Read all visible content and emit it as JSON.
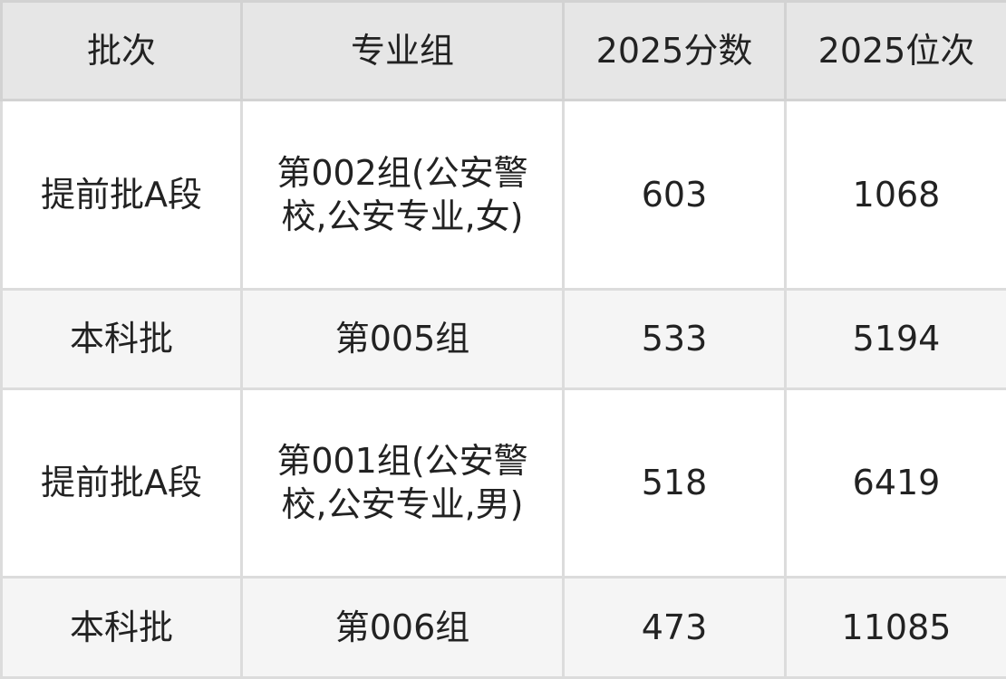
{
  "table": {
    "headers": [
      "批次",
      "专业组",
      "2025分数",
      "2025位次"
    ],
    "rows": [
      [
        "提前批A段",
        "第002组(公安警校,公安专业,女)",
        "603",
        "1068"
      ],
      [
        "本科批",
        "第005组",
        "533",
        "5194"
      ],
      [
        "提前批A段",
        "第001组(公安警校,公安专业,男)",
        "518",
        "6419"
      ],
      [
        "本科批",
        "第006组",
        "473",
        "11085"
      ]
    ]
  }
}
